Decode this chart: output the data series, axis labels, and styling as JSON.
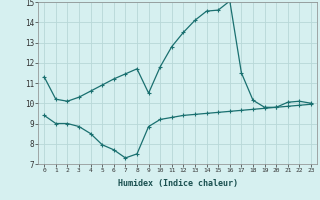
{
  "xlabel": "Humidex (Indice chaleur)",
  "bg_color": "#d6f0f0",
  "grid_color": "#b8d8d8",
  "line_color": "#1a7070",
  "xlim": [
    -0.5,
    23.5
  ],
  "ylim": [
    7,
    15
  ],
  "yticks": [
    7,
    8,
    9,
    10,
    11,
    12,
    13,
    14,
    15
  ],
  "xticks": [
    0,
    1,
    2,
    3,
    4,
    5,
    6,
    7,
    8,
    9,
    10,
    11,
    12,
    13,
    14,
    15,
    16,
    17,
    18,
    19,
    20,
    21,
    22,
    23
  ],
  "line1_x": [
    0,
    1,
    2,
    3,
    4,
    5,
    6,
    7,
    8,
    9,
    10,
    11,
    12,
    13,
    14,
    15,
    16,
    17,
    18,
    19,
    20,
    21,
    22,
    23
  ],
  "line1_y": [
    11.3,
    10.2,
    10.1,
    10.3,
    10.6,
    10.9,
    11.2,
    11.45,
    11.7,
    10.5,
    11.8,
    12.8,
    13.5,
    14.1,
    14.55,
    14.6,
    15.05,
    11.5,
    10.15,
    9.8,
    9.8,
    10.05,
    10.1,
    10.0
  ],
  "line2_x": [
    0,
    1,
    2,
    3,
    4,
    5,
    6,
    7,
    8,
    9,
    10,
    11,
    12,
    13,
    14,
    15,
    16,
    17,
    18,
    19,
    20,
    21,
    22,
    23
  ],
  "line2_y": [
    9.4,
    9.0,
    9.0,
    8.85,
    8.5,
    7.95,
    7.7,
    7.3,
    7.5,
    8.85,
    9.2,
    9.3,
    9.4,
    9.45,
    9.5,
    9.55,
    9.6,
    9.65,
    9.7,
    9.75,
    9.8,
    9.85,
    9.9,
    9.95
  ]
}
